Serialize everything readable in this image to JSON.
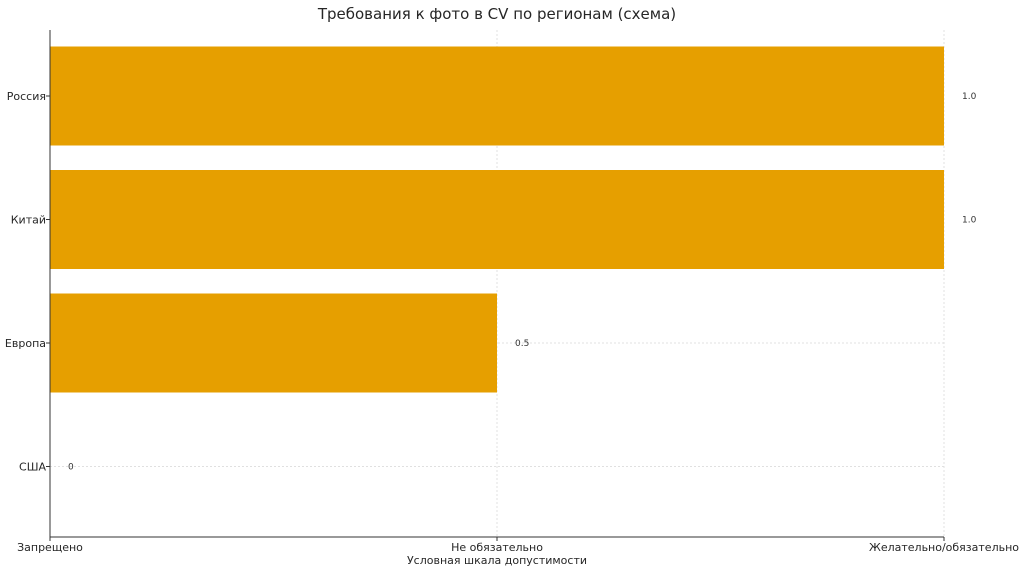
{
  "chart_data": {
    "type": "bar",
    "orientation": "horizontal",
    "title": "Требования к фото в CV по регионам (схема)",
    "xlabel": "Условная шкала допустимости",
    "ylabel": "",
    "categories": [
      "Россия",
      "Китай",
      "Европа",
      "США"
    ],
    "values": [
      1.0,
      1.0,
      0.5,
      0
    ],
    "data_labels": [
      "1.0",
      "1.0",
      "0.5",
      "0"
    ],
    "xlim": [
      0,
      1
    ],
    "x_ticks": [
      0,
      0.5,
      1
    ],
    "x_tick_labels": [
      "Запрещено",
      "Не обязательно",
      "Желательно/обязательно"
    ],
    "grid": true,
    "bar_color": "#E69F00"
  }
}
